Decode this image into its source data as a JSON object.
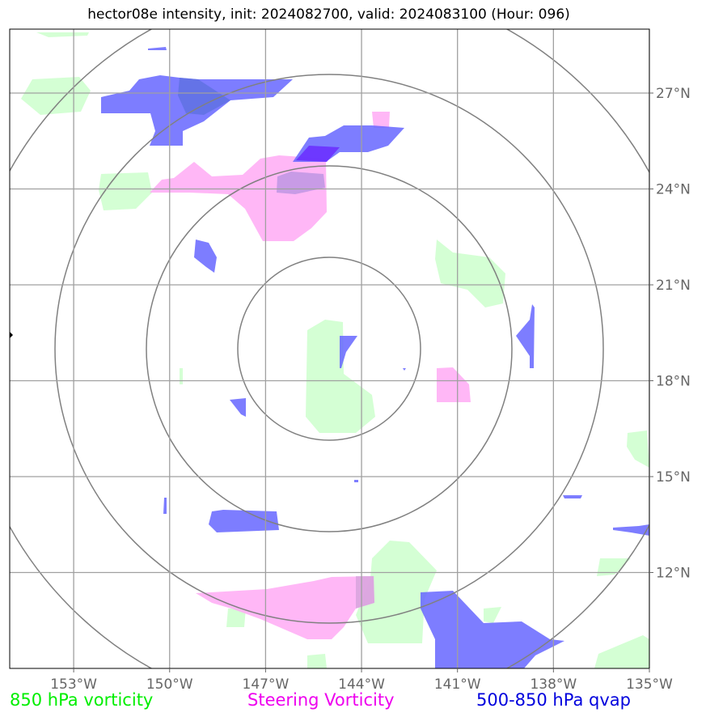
{
  "title": "hector08e intensity, init: 2024082700, valid: 2024083100 (Hour: 096)",
  "map": {
    "lon_range": [
      -155,
      -135
    ],
    "lat_range": [
      9,
      29
    ],
    "x_ticks": [
      {
        "lon": -153,
        "label": "153°W"
      },
      {
        "lon": -150,
        "label": "150°W"
      },
      {
        "lon": -147,
        "label": "147°W"
      },
      {
        "lon": -144,
        "label": "144°W"
      },
      {
        "lon": -141,
        "label": "141°W"
      },
      {
        "lon": -138,
        "label": "138°W"
      },
      {
        "lon": -135,
        "label": "135°W"
      }
    ],
    "y_ticks": [
      {
        "lat": 27,
        "label": "27°N"
      },
      {
        "lat": 24,
        "label": "24°N"
      },
      {
        "lat": 21,
        "label": "21°N"
      },
      {
        "lat": 18,
        "label": "18°N"
      },
      {
        "lat": 15,
        "label": "15°N"
      },
      {
        "lat": 12,
        "label": "12°N"
      }
    ],
    "center": {
      "lon": -145,
      "lat": 19.2
    },
    "colors": {
      "v850": "#ccffcc",
      "steering": "#ffaaf5",
      "qvap": "#6666ff",
      "ring": "#808080",
      "grid": "#a0a0a0"
    }
  },
  "legend": {
    "v850": {
      "label": "850 hPa vorticity",
      "color": "#00ee00"
    },
    "steering": {
      "label": "Steering Vorticity",
      "color": "#ee00ee"
    },
    "qvap": {
      "label": "500-850 hPa qvap",
      "color": "#0000dd"
    }
  }
}
